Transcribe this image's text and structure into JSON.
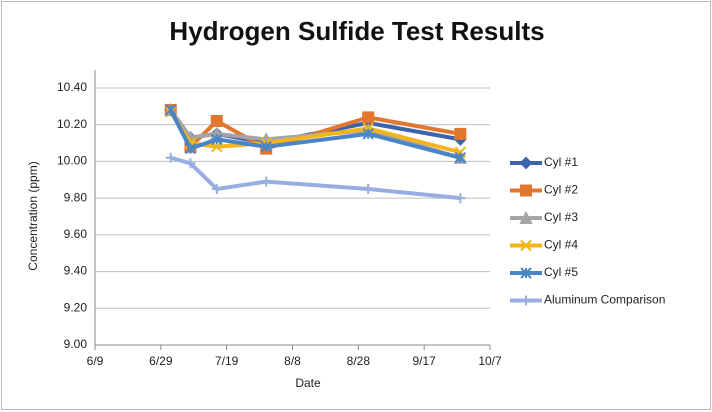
{
  "chart_data": {
    "type": "line",
    "title": "Hydrogen Sulfide Test Results",
    "xlabel": "Date",
    "ylabel": "Concentration (ppm)",
    "x": [
      "7/2",
      "7/8",
      "7/16",
      "7/31",
      "8/31",
      "9/28"
    ],
    "xlim": [
      "6/9",
      "10/7"
    ],
    "xticks": [
      "6/9",
      "6/29",
      "7/19",
      "8/8",
      "8/28",
      "9/17",
      "10/7"
    ],
    "ylim": [
      9,
      10.4
    ],
    "yticks": [
      {
        "value": 9,
        "label": "9.00"
      },
      {
        "value": 9.2,
        "label": "9.20"
      },
      {
        "value": 9.4,
        "label": "9.40"
      },
      {
        "value": 9.6,
        "label": "9.60"
      },
      {
        "value": 9.8,
        "label": "9.80"
      },
      {
        "value": 10,
        "label": "10.00"
      },
      {
        "value": 10.2,
        "label": "10.20"
      },
      {
        "value": 10.4,
        "label": "10.40"
      }
    ],
    "grid": true,
    "legend": "right",
    "series": [
      {
        "name": "Cyl #1",
        "color": "#3b64ad",
        "marker": "diamond",
        "values": [
          10.28,
          10.13,
          10.15,
          10.1,
          10.21,
          10.12
        ]
      },
      {
        "name": "Cyl #2",
        "color": "#e2772f",
        "marker": "square",
        "values": [
          10.28,
          10.08,
          10.22,
          10.07,
          10.24,
          10.15
        ]
      },
      {
        "name": "Cyl #3",
        "color": "#a5a5a5",
        "marker": "triangle",
        "values": [
          10.28,
          10.13,
          10.15,
          10.12,
          10.17,
          10.02
        ]
      },
      {
        "name": "Cyl #4",
        "color": "#f4b41a",
        "marker": "x",
        "values": [
          10.27,
          10.1,
          10.08,
          10.1,
          10.18,
          10.05
        ]
      },
      {
        "name": "Cyl #5",
        "color": "#4a86c5",
        "marker": "star",
        "values": [
          10.28,
          10.07,
          10.12,
          10.08,
          10.15,
          10.02
        ]
      },
      {
        "name": "Aluminum Comparison",
        "color": "#98aee0",
        "marker": "plus",
        "values": [
          10.02,
          9.99,
          9.85,
          9.89,
          9.85,
          9.8
        ]
      }
    ]
  }
}
